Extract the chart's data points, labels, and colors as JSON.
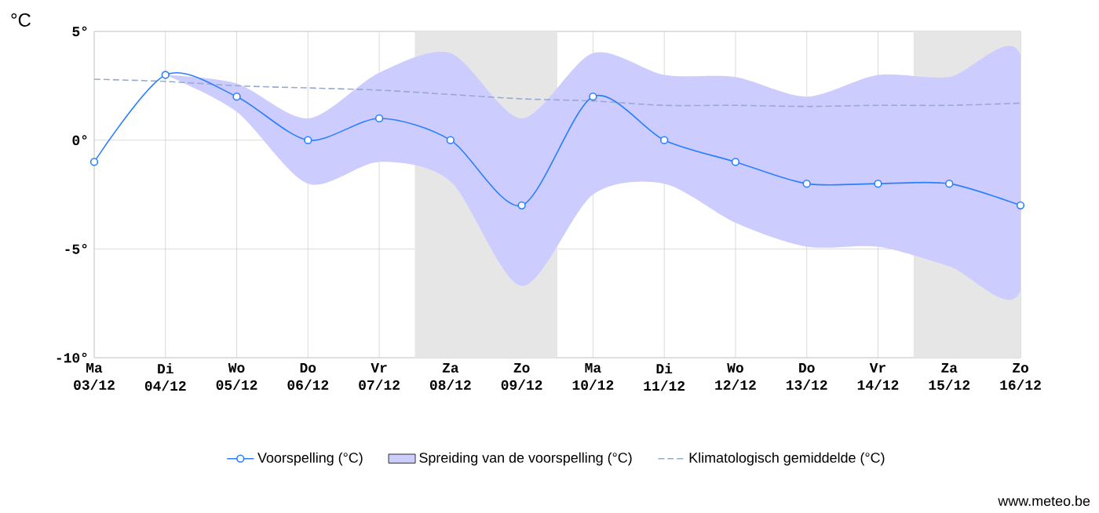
{
  "chart_data": {
    "type": "line",
    "ylabel": "°C",
    "categories": [
      "Ma 03/12",
      "Di 04/12",
      "Wo 05/12",
      "Do 06/12",
      "Vr 07/12",
      "Za 08/12",
      "Zo 09/12",
      "Ma 10/12",
      "Di 11/12",
      "Wo 12/12",
      "Do 13/12",
      "Vr 14/12",
      "Za 15/12",
      "Zo 16/12"
    ],
    "series": [
      {
        "name": "Voorspelling (°C)",
        "color": "#2a7fff",
        "marker": "circle",
        "values": [
          -1,
          3,
          2,
          0,
          1,
          0,
          -3,
          2,
          0,
          -1,
          -2,
          -2,
          -2,
          -3
        ],
        "lower": [
          null,
          3,
          1.3,
          -2,
          -1,
          -1.9,
          -6.7,
          -2.5,
          -2,
          -3.8,
          -4.9,
          -4.9,
          -5.8,
          -6.9
        ],
        "upper": [
          null,
          3,
          2.6,
          1,
          3.1,
          4,
          1,
          4,
          3,
          2.9,
          2,
          3,
          2.9,
          3.9
        ]
      },
      {
        "name": "Spreiding van de voorspelling (°C)",
        "type": "area",
        "color": "#ccccff",
        "values": [
          null,
          null,
          null,
          null,
          null,
          null,
          null,
          null,
          null,
          null,
          null,
          null,
          null,
          null
        ]
      },
      {
        "name": "Klimatologisch gemiddelde (°C)",
        "type": "line",
        "color": "#99aacc",
        "line_style": "dashed",
        "marker": "none",
        "values": [
          2.8,
          2.7,
          2.5,
          2.4,
          2.3,
          2.1,
          1.9,
          1.8,
          1.6,
          1.6,
          1.55,
          1.6,
          1.6,
          1.7
        ]
      }
    ],
    "ylim": [
      -10,
      5
    ],
    "yticks": [
      {
        "value": -10,
        "label": "-10°"
      },
      {
        "value": -5,
        "label": "-5°"
      },
      {
        "value": 0,
        "label": "0°"
      },
      {
        "value": 5,
        "label": "5°"
      }
    ],
    "grid": true,
    "legend": "bottom",
    "bands": [
      {
        "axis": "x",
        "from": "Za 08/12",
        "to": "Zo 09/12",
        "color": "#e6e6e6"
      },
      {
        "axis": "x",
        "from": "Za 15/12",
        "to": "Zo 16/12",
        "color": "#e6e6e6"
      }
    ],
    "annotations": [
      "www.meteo.be"
    ]
  }
}
